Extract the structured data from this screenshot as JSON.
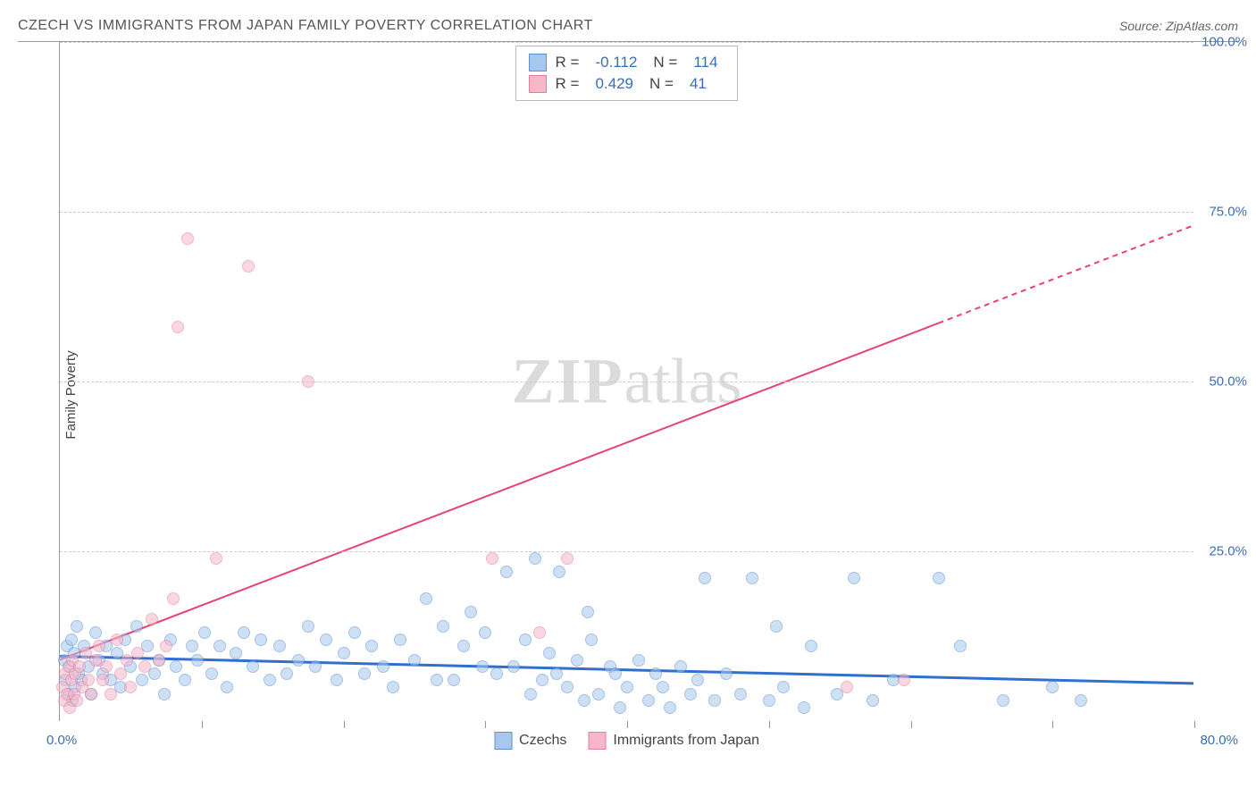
{
  "title": "CZECH VS IMMIGRANTS FROM JAPAN FAMILY POVERTY CORRELATION CHART",
  "source": "Source: ZipAtlas.com",
  "ylabel": "Family Poverty",
  "watermark_zip": "ZIP",
  "watermark_atlas": "atlas",
  "chart": {
    "type": "scatter",
    "xlim": [
      0,
      80
    ],
    "ylim": [
      0,
      100
    ],
    "yticks": [
      25,
      50,
      75,
      100
    ],
    "ytick_labels": [
      "25.0%",
      "50.0%",
      "75.0%",
      "100.0%"
    ],
    "xticks": [
      10,
      20,
      30,
      40,
      50,
      60,
      70,
      80
    ],
    "xlabel_origin": "0.0%",
    "xlabel_max": "80.0%",
    "background_color": "#ffffff",
    "grid_color": "#cccccc",
    "series": [
      {
        "name": "Czechs",
        "color_fill": "#a7c7ec",
        "color_stroke": "#5b8fd6",
        "marker_radius": 7,
        "fill_opacity": 0.55,
        "R": "-0.112",
        "N": "114",
        "trend": {
          "x1": 0,
          "y1": 9.5,
          "x2": 80,
          "y2": 5.5,
          "color": "#2f6fd0",
          "width": 3
        },
        "points": [
          [
            0.3,
            9
          ],
          [
            0.4,
            6
          ],
          [
            0.5,
            11
          ],
          [
            0.6,
            4
          ],
          [
            0.7,
            8
          ],
          [
            0.8,
            12
          ],
          [
            0.9,
            3
          ],
          [
            1,
            10
          ],
          [
            1.1,
            5
          ],
          [
            1.2,
            14
          ],
          [
            1.3,
            7
          ],
          [
            1.5,
            6
          ],
          [
            1.7,
            11
          ],
          [
            2,
            8
          ],
          [
            2.2,
            4
          ],
          [
            2.5,
            13
          ],
          [
            2.8,
            9
          ],
          [
            3,
            7
          ],
          [
            3.3,
            11
          ],
          [
            3.6,
            6
          ],
          [
            4,
            10
          ],
          [
            4.3,
            5
          ],
          [
            4.6,
            12
          ],
          [
            5,
            8
          ],
          [
            5.4,
            14
          ],
          [
            5.8,
            6
          ],
          [
            6.2,
            11
          ],
          [
            6.7,
            7
          ],
          [
            7,
            9
          ],
          [
            7.4,
            4
          ],
          [
            7.8,
            12
          ],
          [
            8.2,
            8
          ],
          [
            8.8,
            6
          ],
          [
            9.3,
            11
          ],
          [
            9.7,
            9
          ],
          [
            10.2,
            13
          ],
          [
            10.7,
            7
          ],
          [
            11.3,
            11
          ],
          [
            11.8,
            5
          ],
          [
            12.4,
            10
          ],
          [
            13,
            13
          ],
          [
            13.6,
            8
          ],
          [
            14.2,
            12
          ],
          [
            14.8,
            6
          ],
          [
            15.5,
            11
          ],
          [
            16,
            7
          ],
          [
            16.8,
            9
          ],
          [
            17.5,
            14
          ],
          [
            18,
            8
          ],
          [
            18.8,
            12
          ],
          [
            19.5,
            6
          ],
          [
            20,
            10
          ],
          [
            20.8,
            13
          ],
          [
            21.5,
            7
          ],
          [
            22,
            11
          ],
          [
            22.8,
            8
          ],
          [
            23.5,
            5
          ],
          [
            24,
            12
          ],
          [
            25,
            9
          ],
          [
            25.8,
            18
          ],
          [
            26.6,
            6
          ],
          [
            27,
            14
          ],
          [
            27.8,
            6
          ],
          [
            28.5,
            11
          ],
          [
            29,
            16
          ],
          [
            29.8,
            8
          ],
          [
            30,
            13
          ],
          [
            30.8,
            7
          ],
          [
            31.5,
            22
          ],
          [
            32,
            8
          ],
          [
            32.8,
            12
          ],
          [
            33.2,
            4
          ],
          [
            33.5,
            24
          ],
          [
            34,
            6
          ],
          [
            34.5,
            10
          ],
          [
            35,
            7
          ],
          [
            35.2,
            22
          ],
          [
            35.8,
            5
          ],
          [
            36.5,
            9
          ],
          [
            37,
            3
          ],
          [
            37.2,
            16
          ],
          [
            37.5,
            12
          ],
          [
            38,
            4
          ],
          [
            38.8,
            8
          ],
          [
            39.2,
            7
          ],
          [
            39.5,
            2
          ],
          [
            40,
            5
          ],
          [
            40.8,
            9
          ],
          [
            41.5,
            3
          ],
          [
            42,
            7
          ],
          [
            42.5,
            5
          ],
          [
            43,
            2
          ],
          [
            43.8,
            8
          ],
          [
            44.5,
            4
          ],
          [
            45,
            6
          ],
          [
            45.5,
            21
          ],
          [
            46.2,
            3
          ],
          [
            47,
            7
          ],
          [
            48,
            4
          ],
          [
            48.8,
            21
          ],
          [
            50,
            3
          ],
          [
            50.5,
            14
          ],
          [
            51,
            5
          ],
          [
            52.5,
            2
          ],
          [
            53,
            11
          ],
          [
            54.8,
            4
          ],
          [
            56,
            21
          ],
          [
            57.3,
            3
          ],
          [
            58.8,
            6
          ],
          [
            62,
            21
          ],
          [
            63.5,
            11
          ],
          [
            66.5,
            3
          ],
          [
            70,
            5
          ],
          [
            72,
            3
          ]
        ]
      },
      {
        "name": "Immigrants from Japan",
        "color_fill": "#f5b8c8",
        "color_stroke": "#e87ba0",
        "marker_radius": 7,
        "fill_opacity": 0.55,
        "R": "0.429",
        "N": "41",
        "trend": {
          "x1": 0,
          "y1": 9,
          "x2": 80,
          "y2": 73,
          "color": "#e8436f",
          "width": 2,
          "dash_from_x": 62
        },
        "points": [
          [
            0.2,
            5
          ],
          [
            0.3,
            3
          ],
          [
            0.4,
            7
          ],
          [
            0.5,
            4
          ],
          [
            0.6,
            8
          ],
          [
            0.7,
            2
          ],
          [
            0.8,
            6
          ],
          [
            0.9,
            9
          ],
          [
            1,
            4
          ],
          [
            1.1,
            7
          ],
          [
            1.2,
            3
          ],
          [
            1.4,
            8
          ],
          [
            1.6,
            5
          ],
          [
            1.8,
            10
          ],
          [
            2,
            6
          ],
          [
            2.2,
            4
          ],
          [
            2.5,
            9
          ],
          [
            2.8,
            11
          ],
          [
            3,
            6
          ],
          [
            3.3,
            8
          ],
          [
            3.6,
            4
          ],
          [
            4,
            12
          ],
          [
            4.3,
            7
          ],
          [
            4.7,
            9
          ],
          [
            5,
            5
          ],
          [
            5.5,
            10
          ],
          [
            6,
            8
          ],
          [
            6.5,
            15
          ],
          [
            7,
            9
          ],
          [
            7.5,
            11
          ],
          [
            8,
            18
          ],
          [
            8.3,
            58
          ],
          [
            9,
            71
          ],
          [
            11,
            24
          ],
          [
            13.3,
            67
          ],
          [
            17.5,
            50
          ],
          [
            30.5,
            24
          ],
          [
            33.8,
            13
          ],
          [
            35.8,
            24
          ],
          [
            55.5,
            5
          ],
          [
            59.5,
            6
          ]
        ]
      }
    ]
  },
  "legend": {
    "czechs_label": "Czechs",
    "japan_label": "Immigrants from Japan"
  }
}
